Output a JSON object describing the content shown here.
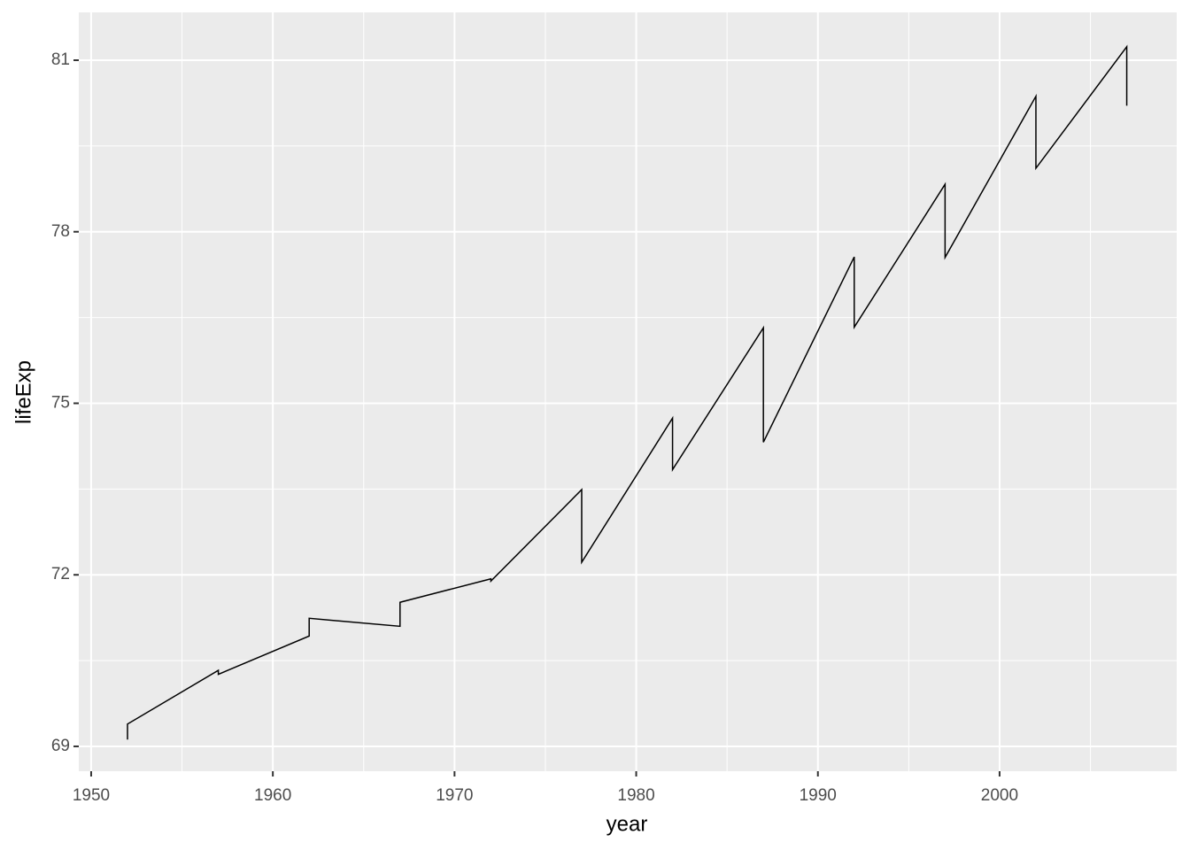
{
  "chart_data": {
    "type": "line",
    "x_label": "year",
    "y_label": "lifeExp",
    "x": [
      1952,
      1952,
      1957,
      1957,
      1962,
      1962,
      1967,
      1967,
      1972,
      1972,
      1977,
      1977,
      1982,
      1982,
      1987,
      1987,
      1992,
      1992,
      1997,
      1997,
      2002,
      2002,
      2007,
      2007
    ],
    "values": [
      69.12,
      69.39,
      70.33,
      70.26,
      70.93,
      71.24,
      71.1,
      71.52,
      71.93,
      71.89,
      73.49,
      72.22,
      74.74,
      73.84,
      76.32,
      74.32,
      77.56,
      76.33,
      78.83,
      77.55,
      80.37,
      79.11,
      81.235,
      80.204
    ],
    "color": "#000000",
    "xlim": [
      1949.32,
      2009.75
    ],
    "ylim": [
      68.566,
      81.836
    ],
    "xticks": [
      1950,
      1960,
      1970,
      1980,
      1990,
      2000
    ],
    "yticks": [
      69,
      72,
      75,
      78,
      81
    ],
    "grid": true
  }
}
